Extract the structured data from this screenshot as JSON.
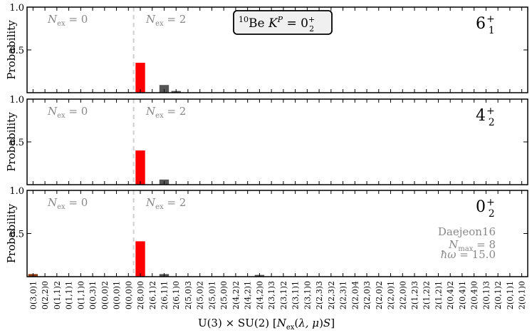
{
  "chart_data": {
    "type": "bar",
    "xlabel": "U(3) × SU(2) [N_ex(λ,μ)S]",
    "ylabel": "Probability",
    "ylim": [
      0,
      1.0
    ],
    "yticks": [
      "1.0",
      "0.5"
    ],
    "region_labels": [
      "N_ex = 0",
      "N_ex = 2"
    ],
    "box_label": "¹⁰Be K^P = 0₂⁺",
    "annotation": [
      "Daejeon16",
      "N_max = 8",
      "ħω = 15.0"
    ],
    "grid": false,
    "categories": [
      "0(3,0)1",
      "0(2,2)0",
      "0(1,1)2",
      "0(1,1)1",
      "0(1,1)0",
      "0(0,3)1",
      "0(0,0)2",
      "0(0,0)1",
      "0(0,0)0",
      "2(8,0)0",
      "2(6,1)2",
      "2(6,1)1",
      "2(6,1)0",
      "2(5,0)3",
      "2(5,0)2",
      "2(5,0)1",
      "2(5,0)0",
      "2(4,2)2",
      "2(4,2)1",
      "2(4,2)0",
      "2(3,1)3",
      "2(3,1)2",
      "2(3,1)1",
      "2(3,1)0",
      "2(2,3)3",
      "2(2,3)2",
      "2(2,3)1",
      "2(2,0)4",
      "2(2,0)3",
      "2(2,0)2",
      "2(2,0)1",
      "2(2,0)0",
      "2(1,2)3",
      "2(1,2)2",
      "2(1,2)1",
      "2(0,4)2",
      "2(0,4)1",
      "2(0,4)0",
      "2(0,1)3",
      "2(0,1)2",
      "2(0,1)1",
      "2(0,1)0"
    ],
    "panels": [
      {
        "state": "6₁⁺",
        "values": {
          "2(8,0)0": 0.35,
          "2(6,1)1": 0.09,
          "2(6,1)0": 0.02
        }
      },
      {
        "state": "4₂⁺",
        "values": {
          "2(8,0)0": 0.4,
          "2(6,1)1": 0.06
        }
      },
      {
        "state": "0₂⁺",
        "values": {
          "0(3,0)1": 0.03,
          "2(8,0)0": 0.41,
          "2(6,1)1": 0.03,
          "2(4,2)0": 0.02
        }
      }
    ],
    "colors": {
      "0(3,0)1": "#8b3a0e",
      "2(8,0)0": "#ff0000",
      "default": "#555555"
    }
  }
}
